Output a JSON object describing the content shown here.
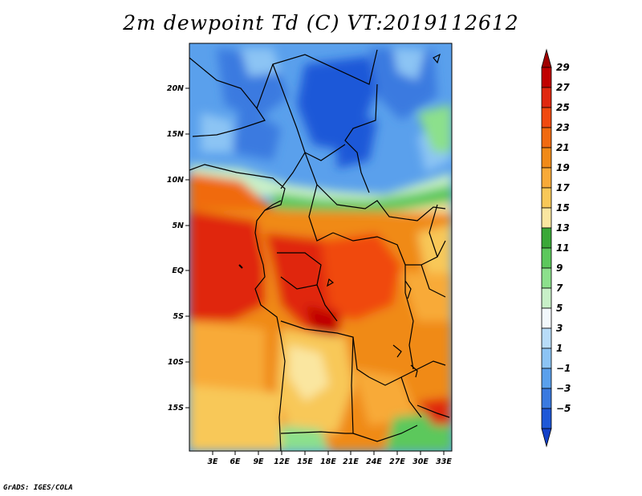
{
  "title": "2m dewpoint Td (C) VT:2019112612",
  "footer": "GrADS: IGES/COLA",
  "axes": {
    "lon_labels": [
      "3E",
      "6E",
      "9E",
      "12E",
      "15E",
      "18E",
      "21E",
      "24E",
      "27E",
      "30E",
      "33E"
    ],
    "lat_labels": [
      "20N",
      "15N",
      "10N",
      "5N",
      "EQ",
      "5S",
      "10S",
      "15S"
    ]
  },
  "colorbar": {
    "labels": [
      "29",
      "27",
      "25",
      "23",
      "21",
      "19",
      "17",
      "15",
      "13",
      "11",
      "9",
      "7",
      "5",
      "3",
      "1",
      "−1",
      "−3",
      "−5"
    ],
    "colors": [
      "#a00000",
      "#c00000",
      "#e02810",
      "#f04a10",
      "#f06a10",
      "#f08a18",
      "#f8aa38",
      "#f8c858",
      "#fae6a0",
      "#3aa838",
      "#5cc85c",
      "#8ce08c",
      "#c8f0c8",
      "#f2f8fc",
      "#b8dcf8",
      "#8cc4f4",
      "#5aa0ec",
      "#3a7ae0",
      "#1e58d8",
      "#1240c8"
    ]
  },
  "map": {
    "projection": "lat-lon",
    "lon_range": [
      0,
      34
    ],
    "lat_range": [
      -20,
      24.5
    ],
    "field": "2m dewpoint temperature",
    "units": "C",
    "valid_time": "2019112612"
  }
}
